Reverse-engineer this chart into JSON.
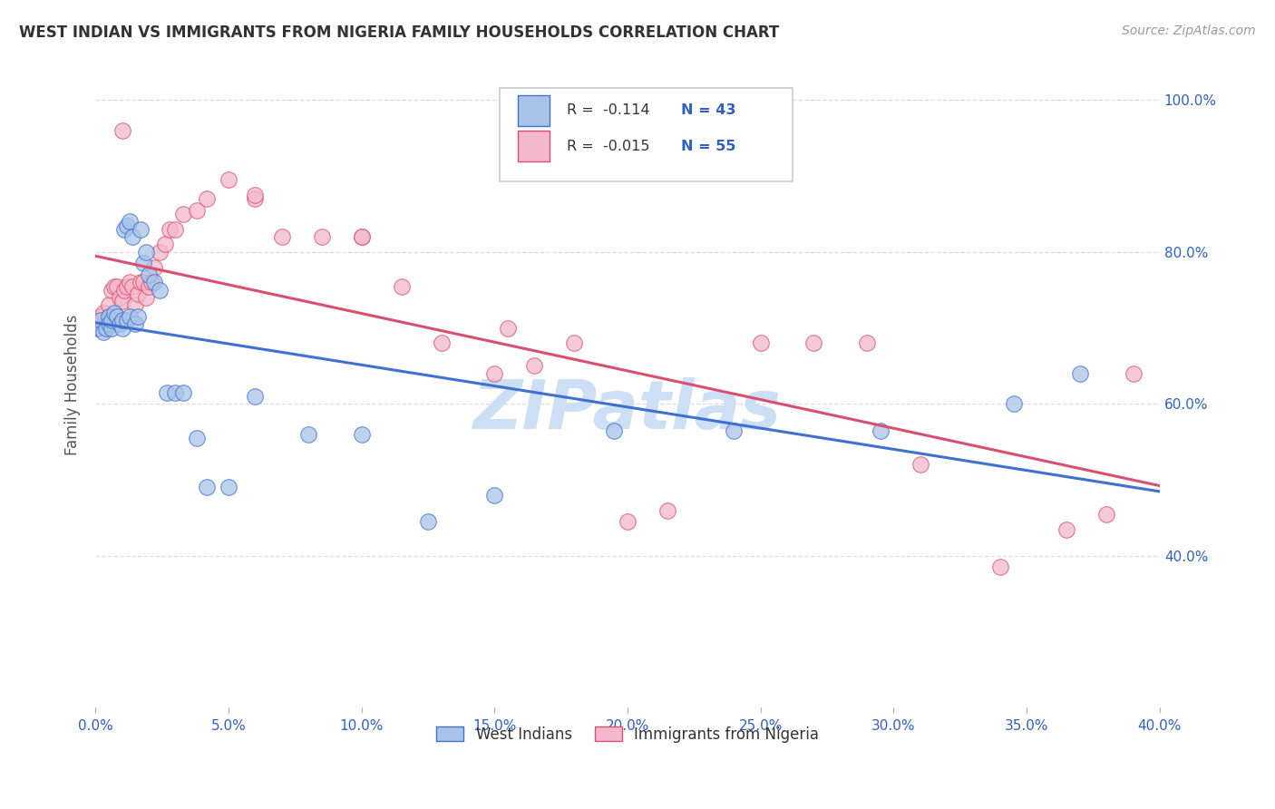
{
  "title": "WEST INDIAN VS IMMIGRANTS FROM NIGERIA FAMILY HOUSEHOLDS CORRELATION CHART",
  "source": "Source: ZipAtlas.com",
  "ylabel": "Family Households",
  "xlim": [
    0.0,
    0.4
  ],
  "ylim": [
    0.2,
    1.05
  ],
  "xtick_vals": [
    0.0,
    0.05,
    0.1,
    0.15,
    0.2,
    0.25,
    0.3,
    0.35,
    0.4
  ],
  "xtick_labels": [
    "0.0%",
    "5.0%",
    "10.0%",
    "15.0%",
    "20.0%",
    "25.0%",
    "30.0%",
    "35.0%",
    "40.0%"
  ],
  "ytick_vals": [
    0.2,
    0.4,
    0.6,
    0.8,
    1.0
  ],
  "ytick_labels_right": [
    "",
    "40.0%",
    "60.0%",
    "80.0%",
    "100.0%"
  ],
  "legend_label_blue": "West Indians",
  "legend_label_pink": "Immigrants from Nigeria",
  "R_blue": -0.114,
  "N_blue": 43,
  "R_pink": -0.015,
  "N_pink": 55,
  "color_blue": "#a8c4e8",
  "color_pink": "#f4b8cc",
  "color_line_blue": "#4070d0",
  "color_line_pink": "#d85070",
  "color_text_blue": "#3060c0",
  "color_watermark": "#ccdff5",
  "wi_x": [
    0.001,
    0.002,
    0.003,
    0.004,
    0.005,
    0.005,
    0.006,
    0.006,
    0.007,
    0.008,
    0.009,
    0.01,
    0.01,
    0.011,
    0.012,
    0.012,
    0.013,
    0.013,
    0.014,
    0.015,
    0.016,
    0.017,
    0.018,
    0.019,
    0.02,
    0.022,
    0.024,
    0.027,
    0.03,
    0.033,
    0.038,
    0.042,
    0.05,
    0.06,
    0.08,
    0.1,
    0.125,
    0.15,
    0.195,
    0.24,
    0.295,
    0.345,
    0.37
  ],
  "wi_y": [
    0.7,
    0.71,
    0.695,
    0.7,
    0.715,
    0.705,
    0.7,
    0.71,
    0.72,
    0.715,
    0.705,
    0.7,
    0.71,
    0.83,
    0.835,
    0.71,
    0.715,
    0.84,
    0.82,
    0.705,
    0.715,
    0.83,
    0.785,
    0.8,
    0.77,
    0.76,
    0.75,
    0.615,
    0.615,
    0.615,
    0.555,
    0.49,
    0.49,
    0.61,
    0.56,
    0.56,
    0.445,
    0.48,
    0.565,
    0.565,
    0.565,
    0.6,
    0.64
  ],
  "ni_x": [
    0.001,
    0.002,
    0.003,
    0.004,
    0.005,
    0.005,
    0.006,
    0.007,
    0.008,
    0.009,
    0.01,
    0.01,
    0.011,
    0.012,
    0.013,
    0.014,
    0.015,
    0.016,
    0.017,
    0.018,
    0.019,
    0.02,
    0.021,
    0.022,
    0.024,
    0.026,
    0.028,
    0.03,
    0.033,
    0.038,
    0.042,
    0.05,
    0.06,
    0.07,
    0.085,
    0.1,
    0.115,
    0.13,
    0.155,
    0.165,
    0.18,
    0.2,
    0.215,
    0.25,
    0.27,
    0.29,
    0.31,
    0.34,
    0.365,
    0.38,
    0.01,
    0.06,
    0.1,
    0.15,
    0.39
  ],
  "ni_y": [
    0.7,
    0.715,
    0.72,
    0.7,
    0.715,
    0.73,
    0.75,
    0.755,
    0.755,
    0.74,
    0.71,
    0.735,
    0.75,
    0.755,
    0.76,
    0.755,
    0.73,
    0.745,
    0.76,
    0.76,
    0.74,
    0.755,
    0.76,
    0.78,
    0.8,
    0.81,
    0.83,
    0.83,
    0.85,
    0.855,
    0.87,
    0.895,
    0.87,
    0.82,
    0.82,
    0.82,
    0.755,
    0.68,
    0.7,
    0.65,
    0.68,
    0.445,
    0.46,
    0.68,
    0.68,
    0.68,
    0.52,
    0.385,
    0.435,
    0.455,
    0.96,
    0.875,
    0.82,
    0.64,
    0.64
  ]
}
